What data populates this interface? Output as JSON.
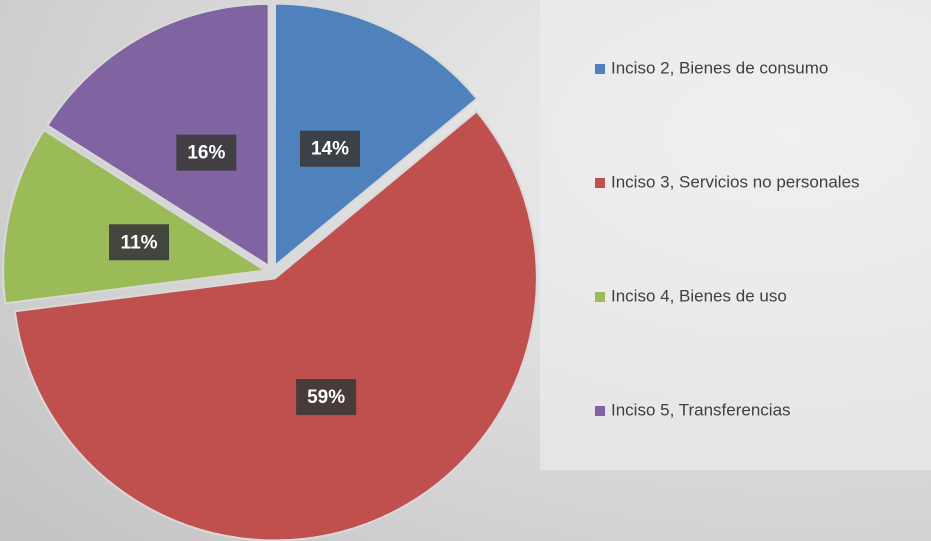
{
  "chart_data": {
    "type": "pie",
    "categories": [
      "Inciso 2, Bienes de consumo",
      "Inciso 3, Servicios no personales",
      "Inciso 4, Bienes de uso",
      "Inciso 5, Transferencias"
    ],
    "values": [
      14,
      59,
      11,
      16
    ],
    "value_labels": [
      "14%",
      "59%",
      "11%",
      "16%"
    ],
    "colors": [
      "#4f81bd",
      "#c0504d",
      "#9bbb59",
      "#8064a2"
    ],
    "legend": "right"
  }
}
